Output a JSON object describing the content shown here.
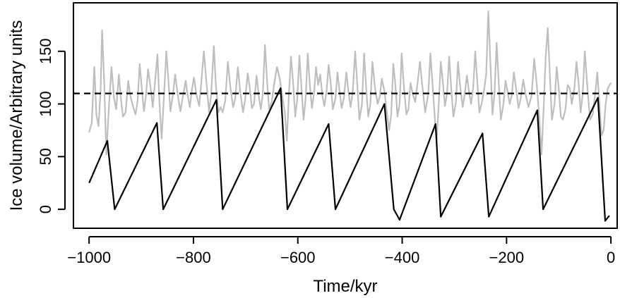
{
  "chart_data": {
    "type": "line",
    "title": "",
    "xlabel": "Time/kyr",
    "ylabel": "Ice volume/Arbitrary units",
    "xlim": [
      -1030,
      12
    ],
    "ylim": [
      -18,
      196
    ],
    "x_ticks": [
      -1000,
      -800,
      -600,
      -400,
      -200,
      0
    ],
    "y_ticks": [
      0,
      50,
      100,
      150
    ],
    "x_tick_labels": [
      "−1000",
      "−800",
      "−600",
      "−400",
      "−200",
      "0"
    ],
    "y_tick_labels": [
      "0",
      "50",
      "100",
      "150"
    ],
    "grid": false,
    "legend": "none",
    "threshold": {
      "y": 110,
      "style": "dashed",
      "color": "#000000"
    },
    "series": [
      {
        "color": "#bebebe",
        "points": [
          [
            -1000,
            73
          ],
          [
            -995,
            82
          ],
          [
            -990,
            135
          ],
          [
            -986,
            90
          ],
          [
            -982,
            79
          ],
          [
            -978,
            112
          ],
          [
            -975,
            170
          ],
          [
            -971,
            120
          ],
          [
            -967,
            52
          ],
          [
            -962,
            97
          ],
          [
            -957,
            135
          ],
          [
            -952,
            105
          ],
          [
            -948,
            95
          ],
          [
            -943,
            128
          ],
          [
            -939,
            105
          ],
          [
            -935,
            88
          ],
          [
            -930,
            92
          ],
          [
            -925,
            122
          ],
          [
            -921,
            108
          ],
          [
            -916,
            98
          ],
          [
            -911,
            90
          ],
          [
            -907,
            103
          ],
          [
            -903,
            138
          ],
          [
            -899,
            115
          ],
          [
            -895,
            93
          ],
          [
            -891,
            108
          ],
          [
            -887,
            133
          ],
          [
            -882,
            115
          ],
          [
            -878,
            97
          ],
          [
            -874,
            119
          ],
          [
            -869,
            147
          ],
          [
            -865,
            100
          ],
          [
            -861,
            67
          ],
          [
            -857,
            102
          ],
          [
            -852,
            150
          ],
          [
            -848,
            122
          ],
          [
            -844,
            93
          ],
          [
            -839,
            110
          ],
          [
            -835,
            128
          ],
          [
            -830,
            108
          ],
          [
            -825,
            93
          ],
          [
            -820,
            108
          ],
          [
            -815,
            122
          ],
          [
            -811,
            108
          ],
          [
            -807,
            97
          ],
          [
            -803,
            113
          ],
          [
            -799,
            125
          ],
          [
            -794,
            108
          ],
          [
            -789,
            98
          ],
          [
            -785,
            120
          ],
          [
            -780,
            150
          ],
          [
            -775,
            120
          ],
          [
            -770,
            92
          ],
          [
            -766,
            110
          ],
          [
            -761,
            155
          ],
          [
            -757,
            118
          ],
          [
            -752,
            92
          ],
          [
            -748,
            97
          ],
          [
            -744,
            92
          ],
          [
            -739,
            103
          ],
          [
            -734,
            140
          ],
          [
            -729,
            115
          ],
          [
            -724,
            97
          ],
          [
            -720,
            105
          ],
          [
            -715,
            135
          ],
          [
            -710,
            110
          ],
          [
            -705,
            92
          ],
          [
            -701,
            104
          ],
          [
            -696,
            129
          ],
          [
            -692,
            115
          ],
          [
            -688,
            96
          ],
          [
            -684,
            100
          ],
          [
            -679,
            127
          ],
          [
            -675,
            108
          ],
          [
            -671,
            95
          ],
          [
            -667,
            110
          ],
          [
            -663,
            156
          ],
          [
            -659,
            122
          ],
          [
            -655,
            95
          ],
          [
            -650,
            102
          ],
          [
            -645,
            120
          ],
          [
            -640,
            135
          ],
          [
            -635,
            125
          ],
          [
            -630,
            108
          ],
          [
            -625,
            92
          ],
          [
            -621,
            65
          ],
          [
            -617,
            110
          ],
          [
            -613,
            145
          ],
          [
            -609,
            120
          ],
          [
            -605,
            88
          ],
          [
            -601,
            105
          ],
          [
            -597,
            146
          ],
          [
            -593,
            115
          ],
          [
            -589,
            85
          ],
          [
            -585,
            105
          ],
          [
            -581,
            148
          ],
          [
            -577,
            118
          ],
          [
            -573,
            96
          ],
          [
            -569,
            110
          ],
          [
            -565,
            135
          ],
          [
            -561,
            118
          ],
          [
            -557,
            128
          ],
          [
            -553,
            108
          ],
          [
            -549,
            98
          ],
          [
            -545,
            112
          ],
          [
            -541,
            137
          ],
          [
            -537,
            120
          ],
          [
            -533,
            95
          ],
          [
            -528,
            105
          ],
          [
            -524,
            130
          ],
          [
            -520,
            112
          ],
          [
            -516,
            96
          ],
          [
            -512,
            105
          ],
          [
            -507,
            130
          ],
          [
            -503,
            112
          ],
          [
            -499,
            97
          ],
          [
            -495,
            110
          ],
          [
            -490,
            150
          ],
          [
            -486,
            118
          ],
          [
            -482,
            85
          ],
          [
            -477,
            100
          ],
          [
            -473,
            148
          ],
          [
            -469,
            115
          ],
          [
            -465,
            88
          ],
          [
            -461,
            100
          ],
          [
            -457,
            140
          ],
          [
            -452,
            115
          ],
          [
            -447,
            100
          ],
          [
            -443,
            107
          ],
          [
            -439,
            124
          ],
          [
            -434,
            112
          ],
          [
            -429,
            90
          ],
          [
            -425,
            75
          ],
          [
            -421,
            90
          ],
          [
            -417,
            138
          ],
          [
            -413,
            118
          ],
          [
            -409,
            88
          ],
          [
            -405,
            100
          ],
          [
            -401,
            148
          ],
          [
            -397,
            118
          ],
          [
            -392,
            90
          ],
          [
            -388,
            95
          ],
          [
            -384,
            120
          ],
          [
            -380,
            110
          ],
          [
            -375,
            102
          ],
          [
            -371,
            118
          ],
          [
            -366,
            140
          ],
          [
            -361,
            115
          ],
          [
            -356,
            92
          ],
          [
            -350,
            110
          ],
          [
            -346,
            148
          ],
          [
            -342,
            120
          ],
          [
            -338,
            90
          ],
          [
            -334,
            65
          ],
          [
            -330,
            100
          ],
          [
            -326,
            140
          ],
          [
            -322,
            120
          ],
          [
            -318,
            98
          ],
          [
            -314,
            110
          ],
          [
            -310,
            145
          ],
          [
            -306,
            115
          ],
          [
            -302,
            88
          ],
          [
            -297,
            102
          ],
          [
            -293,
            140
          ],
          [
            -289,
            117
          ],
          [
            -284,
            97
          ],
          [
            -280,
            110
          ],
          [
            -276,
            127
          ],
          [
            -272,
            112
          ],
          [
            -268,
            100
          ],
          [
            -264,
            115
          ],
          [
            -260,
            150
          ],
          [
            -256,
            120
          ],
          [
            -252,
            92
          ],
          [
            -248,
            100
          ],
          [
            -244,
            110
          ],
          [
            -239,
            128
          ],
          [
            -235,
            188
          ],
          [
            -231,
            140
          ],
          [
            -227,
            90
          ],
          [
            -223,
            110
          ],
          [
            -219,
            158
          ],
          [
            -215,
            120
          ],
          [
            -211,
            85
          ],
          [
            -206,
            100
          ],
          [
            -202,
            122
          ],
          [
            -198,
            112
          ],
          [
            -194,
            100
          ],
          [
            -190,
            108
          ],
          [
            -186,
            130
          ],
          [
            -181,
            112
          ],
          [
            -177,
            96
          ],
          [
            -173,
            105
          ],
          [
            -168,
            123
          ],
          [
            -163,
            108
          ],
          [
            -158,
            97
          ],
          [
            -152,
            108
          ],
          [
            -147,
            143
          ],
          [
            -142,
            118
          ],
          [
            -137,
            85
          ],
          [
            -133,
            52
          ],
          [
            -129,
            95
          ],
          [
            -125,
            145
          ],
          [
            -121,
            172
          ],
          [
            -117,
            128
          ],
          [
            -113,
            85
          ],
          [
            -108,
            100
          ],
          [
            -104,
            135
          ],
          [
            -100,
            115
          ],
          [
            -96,
            88
          ],
          [
            -92,
            85
          ],
          [
            -87,
            95
          ],
          [
            -83,
            118
          ],
          [
            -79,
            115
          ],
          [
            -75,
            100
          ],
          [
            -70,
            115
          ],
          [
            -66,
            140
          ],
          [
            -62,
            120
          ],
          [
            -58,
            92
          ],
          [
            -54,
            110
          ],
          [
            -50,
            150
          ],
          [
            -45,
            115
          ],
          [
            -40,
            85
          ],
          [
            -35,
            90
          ],
          [
            -30,
            110
          ],
          [
            -26,
            130
          ],
          [
            -22,
            100
          ],
          [
            -18,
            70
          ],
          [
            -14,
            75
          ],
          [
            -10,
            100
          ],
          [
            -6,
            115
          ],
          [
            0,
            120
          ]
        ]
      },
      {
        "color": "#000000",
        "points": [
          [
            -1000,
            25
          ],
          [
            -965,
            65
          ],
          [
            -951,
            0
          ],
          [
            -870,
            82
          ],
          [
            -858,
            0
          ],
          [
            -756,
            104
          ],
          [
            -744,
            0
          ],
          [
            -633,
            115
          ],
          [
            -620,
            0
          ],
          [
            -541,
            81
          ],
          [
            -528,
            0
          ],
          [
            -434,
            100
          ],
          [
            -416,
            0
          ],
          [
            -405,
            -10
          ],
          [
            -336,
            81
          ],
          [
            -326,
            -7
          ],
          [
            -246,
            72
          ],
          [
            -234,
            -7
          ],
          [
            -141,
            94
          ],
          [
            -130,
            0
          ],
          [
            -25,
            106
          ],
          [
            -11,
            -11
          ],
          [
            -3,
            -6
          ]
        ]
      }
    ]
  }
}
